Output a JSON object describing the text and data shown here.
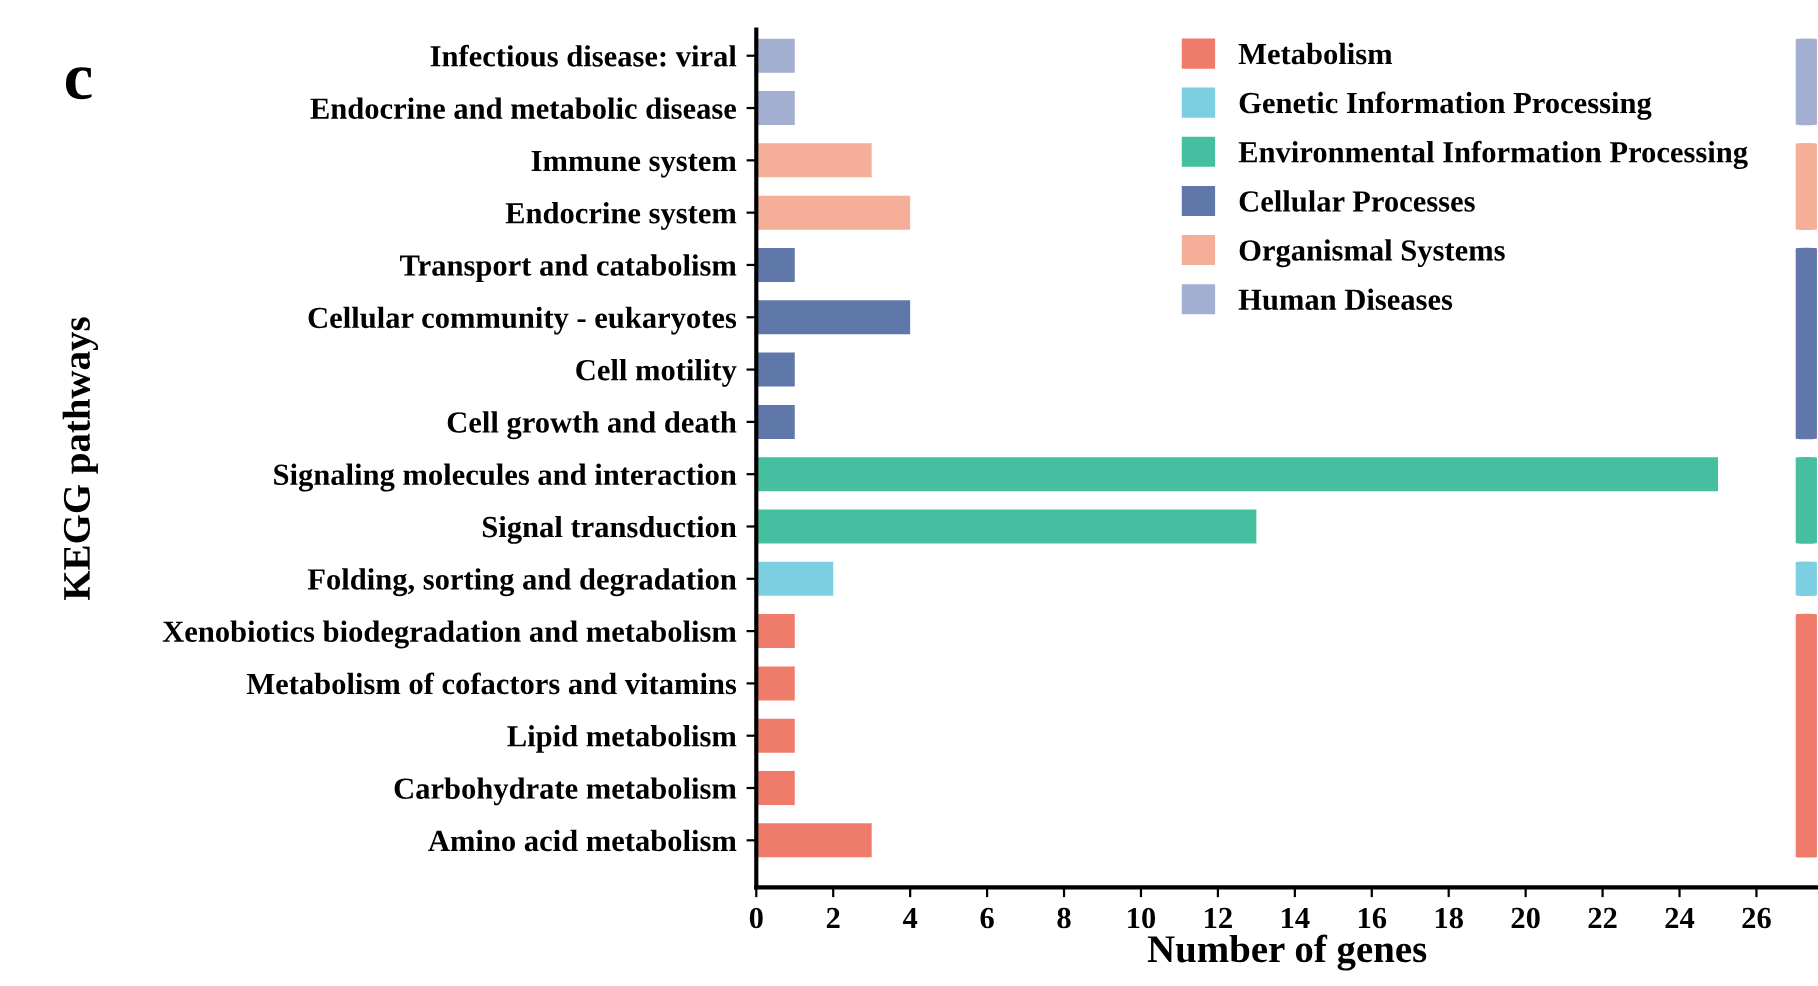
{
  "chart_data": {
    "type": "bar",
    "orientation": "horizontal",
    "xlabel": "Number of genes",
    "ylabel": "KEGG pathways",
    "annotations": [
      "c"
    ],
    "categories": [
      "Infectious disease: viral",
      "Endocrine and metabolic disease",
      "Immune system",
      "Endocrine system",
      "Transport and catabolism",
      "Cellular community - eukaryotes",
      "Cell motility",
      "Cell growth and death",
      "Signaling molecules and interaction",
      "Signal transduction",
      "Folding, sorting and degradation",
      "Xenobiotics biodegradation and metabolism",
      "Metabolism of cofactors and vitamins",
      "Lipid metabolism",
      "Carbohydrate metabolism",
      "Amino acid metabolism"
    ],
    "series": [
      {
        "name": "Metabolism",
        "color": "#ef7b6b",
        "values": [
          null,
          null,
          null,
          null,
          null,
          null,
          null,
          null,
          null,
          null,
          null,
          1,
          1,
          1,
          1,
          3
        ]
      },
      {
        "name": "Genetic Information Processing",
        "color": "#7ccfe0",
        "values": [
          null,
          null,
          null,
          null,
          null,
          null,
          null,
          null,
          null,
          null,
          2,
          null,
          null,
          null,
          null,
          null
        ]
      },
      {
        "name": "Environmental Information Processing",
        "color": "#45bf9f",
        "values": [
          null,
          null,
          null,
          null,
          null,
          null,
          null,
          null,
          25,
          13,
          null,
          null,
          null,
          null,
          null,
          null
        ]
      },
      {
        "name": "Cellular Processes",
        "color": "#6077a9",
        "values": [
          null,
          null,
          null,
          null,
          1,
          4,
          1,
          1,
          null,
          null,
          null,
          null,
          null,
          null,
          null,
          null
        ]
      },
      {
        "name": "Organismal Systems",
        "color": "#f5ae98",
        "values": [
          null,
          null,
          3,
          4,
          null,
          null,
          null,
          null,
          null,
          null,
          null,
          null,
          null,
          null,
          null,
          null
        ]
      },
      {
        "name": "Human Diseases",
        "color": "#a3afd1",
        "values": [
          1,
          1,
          null,
          null,
          null,
          null,
          null,
          null,
          null,
          null,
          null,
          null,
          null,
          null,
          null,
          null
        ]
      }
    ],
    "xlim": [
      0,
      27.6
    ],
    "xticks": [
      0,
      2,
      4,
      6,
      8,
      10,
      12,
      14,
      16,
      18,
      20,
      22,
      24,
      26
    ],
    "grid": false,
    "legend": "top right"
  }
}
